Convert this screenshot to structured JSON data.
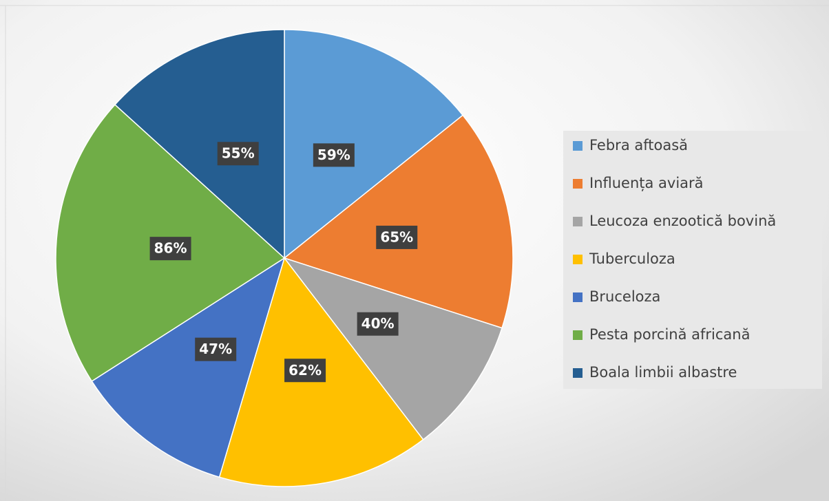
{
  "chart_data": {
    "type": "pie",
    "categories": [
      "Febra aftoasă",
      "Influența aviară",
      "Leucoza enzootică bovină",
      "Tuberculoza",
      "Bruceloza",
      "Pesta porcină africană",
      "Boala limbii albastre"
    ],
    "values": [
      59,
      65,
      40,
      62,
      47,
      86,
      55
    ],
    "value_labels": [
      "59%",
      "65%",
      "40%",
      "62%",
      "47%",
      "86%",
      "55%"
    ],
    "colors": [
      "#5b9bd5",
      "#ed7d31",
      "#a5a5a5",
      "#ffc000",
      "#4472c4",
      "#70ad47",
      "#255e91"
    ],
    "legend": "right"
  }
}
